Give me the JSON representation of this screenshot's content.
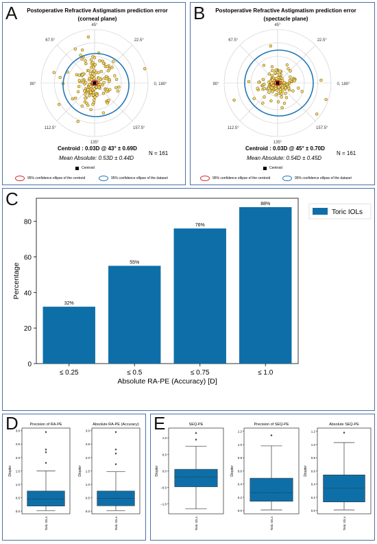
{
  "panels": {
    "A": {
      "letter": "A",
      "title_line1": "Postoperative Refractive Astigmatism prediction error",
      "title_line2": "(corneal plane)",
      "centroid": "Centroid : 0.03D @ 43° ± 0.69D",
      "mean_abs": "Mean Absolute:    0.53D ± 0.44D",
      "n": "N = 161",
      "legend_centroid": "Centroid",
      "legend_red": "95% confidence ellipse of  the centroid",
      "legend_blue": "95% confidence ellipse of the dataset"
    },
    "B": {
      "letter": "B",
      "title_line1": "Postoperative Refractive Astigmatism prediction error",
      "title_line2": "(spectacle plane)",
      "centroid": "Centroid : 0.03D @ 45° ± 0.70D",
      "mean_abs": "Mean Absolute:    0.54D ± 0.45D",
      "n": "N = 161",
      "legend_centroid": "Centroid",
      "legend_red": "95% confidence ellipse of  the centroid",
      "legend_blue": "95% confidence ellipse of the dataset"
    },
    "C": {
      "letter": "C"
    },
    "D": {
      "letter": "D"
    },
    "E": {
      "letter": "E"
    }
  },
  "polar_labels": {
    "a45": "45°",
    "a22": "22.5°",
    "a67": "67.5°",
    "a90": "90°",
    "a0": "0, 180°",
    "a112": "112.5°",
    "a157": "157.5°",
    "a135": "135°"
  },
  "colors": {
    "bar": "#0e6fa8",
    "box": "#0e6fa8",
    "ellipse_blue": "#1f77b4",
    "ellipse_red": "#d62728",
    "point_fill": "#f5d76e",
    "point_edge": "#6b5200"
  },
  "chart_data": [
    {
      "type": "bar",
      "panel": "C",
      "categories": [
        "≤ 0.25",
        "≤ 0.5",
        "≤ 0.75",
        "≤ 1.0"
      ],
      "series": [
        {
          "name": "Toric IOLs",
          "values": [
            32,
            55,
            76,
            88
          ]
        }
      ],
      "data_labels": [
        "32%",
        "55%",
        "76%",
        "88%"
      ],
      "xlabel": "Absolute RA-PE (Accuracy) [D]",
      "ylabel": "Percentage",
      "ylim": [
        0,
        93
      ],
      "yticks": [
        "0",
        "20",
        "40",
        "60",
        "80"
      ],
      "legend": "top-right",
      "grid": false
    },
    {
      "type": "box",
      "panel": "D",
      "title": "Precision of RA-PE",
      "ylabel": "Diopter",
      "category": "Toric IOLs",
      "ylim": [
        -0.1,
        3.1
      ],
      "yticks": [
        "0.0",
        "0.5",
        "1.0",
        "1.5",
        "2.0",
        "2.5",
        "3.0"
      ],
      "stats": {
        "min": 0.02,
        "q1": 0.19,
        "median": 0.45,
        "q3": 0.75,
        "max": 1.5
      },
      "outliers": [
        1.8,
        2.2,
        2.3,
        2.95
      ]
    },
    {
      "type": "box",
      "panel": "D",
      "title": "Absolute RA-PE (Accuracy)",
      "ylabel": "Diopter",
      "category": "Toric IOLs",
      "ylim": [
        -0.1,
        3.1
      ],
      "yticks": [
        "0.0",
        "0.5",
        "1.0",
        "1.5",
        "2.0",
        "2.5",
        "3.0"
      ],
      "stats": {
        "min": 0.02,
        "q1": 0.2,
        "median": 0.48,
        "q3": 0.75,
        "max": 1.47
      },
      "outliers": [
        1.75,
        2.15,
        2.3,
        2.95
      ]
    },
    {
      "type": "box",
      "panel": "E",
      "title": "SEQ-PE",
      "ylabel": "Diopter",
      "category": "Toric IOLs",
      "ylim": [
        -1.3,
        1.3
      ],
      "yticks": [
        "−1.0",
        "−0.5",
        "0.0",
        "0.5",
        "1.0"
      ],
      "stats": {
        "min": -1.15,
        "q1": -0.48,
        "median": -0.18,
        "q3": 0.05,
        "max": 0.75
      },
      "outliers": [
        0.95,
        1.15
      ]
    },
    {
      "type": "box",
      "panel": "E",
      "title": "Precision of SEQ-PE",
      "ylabel": "Diopter",
      "category": "Toric IOLs",
      "ylim": [
        -0.05,
        1.25
      ],
      "yticks": [
        "0.0",
        "0.2",
        "0.4",
        "0.6",
        "0.8",
        "1.0",
        "1.2"
      ],
      "stats": {
        "min": 0.01,
        "q1": 0.14,
        "median": 0.27,
        "q3": 0.49,
        "max": 0.98
      },
      "outliers": [
        1.14
      ]
    },
    {
      "type": "box",
      "panel": "E",
      "title": "Absolute SEQ-PE",
      "ylabel": "Diopter",
      "category": "Toric IOLs",
      "ylim": [
        -0.05,
        1.25
      ],
      "yticks": [
        "0.0",
        "0.2",
        "0.4",
        "0.6",
        "0.8",
        "1.0",
        "1.2"
      ],
      "stats": {
        "min": 0.01,
        "q1": 0.13,
        "median": 0.34,
        "q3": 0.54,
        "max": 1.03
      },
      "outliers": [
        1.18
      ]
    }
  ]
}
